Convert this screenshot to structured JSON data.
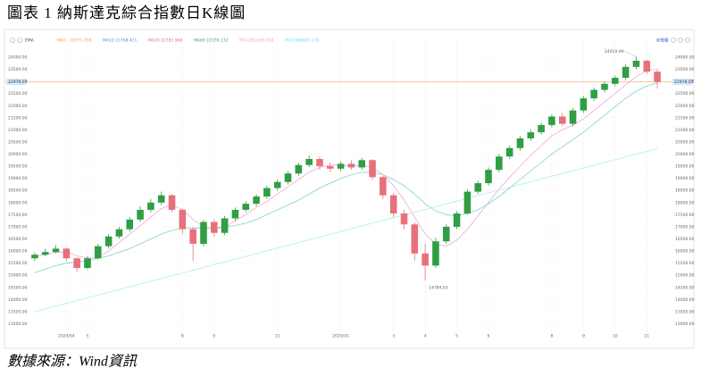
{
  "title": "圖表 1 納斯達克綜合指數日K線圖",
  "source": "數據來源：Wind資訊",
  "chart_data": {
    "type": "candlestick",
    "legend_title": "EMA",
    "adjust_label": "前復權",
    "legend": [
      {
        "name": "MA5",
        "value": "22971.498",
        "color": "#f0a040"
      },
      {
        "name": "MA10",
        "value": "22768.421",
        "color": "#4a90d9"
      },
      {
        "name": "MA20",
        "value": "22761.968",
        "color": "#e05fb5"
      },
      {
        "name": "MA60",
        "value": "22378.132",
        "color": "#3aa35a"
      },
      {
        "name": "MA120",
        "value": "21628.318",
        "color": "#f0a0d0"
      },
      {
        "name": "MA250",
        "value": "19893.178",
        "color": "#6fd8f0"
      }
    ],
    "categories": [
      null,
      null,
      null,
      "2024/04",
      null,
      "5",
      null,
      null,
      null,
      null,
      null,
      null,
      null,
      null,
      "8",
      null,
      null,
      "9",
      null,
      null,
      null,
      null,
      null,
      "11",
      null,
      null,
      null,
      null,
      null,
      "2025/01",
      null,
      null,
      null,
      null,
      "3",
      null,
      null,
      "4",
      null,
      null,
      "5",
      null,
      null,
      "6",
      null,
      null,
      null,
      null,
      null,
      "8",
      null,
      null,
      "9",
      null,
      null,
      "10",
      null,
      null,
      "11",
      null
    ],
    "open": [
      15700,
      15850,
      15960,
      16100,
      15700,
      15300,
      15700,
      16200,
      16600,
      16900,
      17300,
      17700,
      18000,
      18300,
      17700,
      16900,
      16300,
      17200,
      16750,
      17350,
      17700,
      17950,
      18250,
      18600,
      18850,
      19200,
      19550,
      19800,
      19500,
      19400,
      19600,
      19450,
      19750,
      19050,
      18300,
      17550,
      17100,
      15900,
      15400,
      16400,
      17000,
      17550,
      18450,
      18800,
      19350,
      19900,
      20250,
      20650,
      20900,
      21200,
      21550,
      21250,
      21800,
      22300,
      22650,
      22900,
      23150,
      23600,
      23850,
      23400
    ],
    "high": [
      15950,
      16100,
      16250,
      16150,
      15750,
      15800,
      16300,
      16700,
      17000,
      17400,
      17850,
      18150,
      18450,
      18350,
      17750,
      17000,
      17300,
      17300,
      17450,
      17800,
      18050,
      18350,
      18700,
      18950,
      19300,
      19650,
      19950,
      19900,
      19650,
      19700,
      19750,
      19850,
      19800,
      19100,
      18400,
      17700,
      17200,
      16300,
      16550,
      17100,
      17650,
      18550,
      18900,
      19450,
      20000,
      20350,
      20750,
      21000,
      21300,
      21650,
      21700,
      21900,
      22400,
      22750,
      23000,
      23250,
      23700,
      24019.99,
      23900,
      23500
    ],
    "low": [
      15600,
      15780,
      15900,
      15600,
      15150,
      15250,
      15650,
      16100,
      16500,
      16800,
      17200,
      17600,
      17900,
      17600,
      16700,
      15600,
      16200,
      16600,
      16650,
      17250,
      17600,
      17850,
      18150,
      18500,
      18750,
      19100,
      19450,
      19350,
      19250,
      19300,
      19350,
      19350,
      18950,
      18150,
      17400,
      16900,
      15600,
      14784.03,
      15300,
      16300,
      16900,
      17500,
      18350,
      18700,
      19250,
      19800,
      20150,
      20550,
      20800,
      21100,
      21150,
      21150,
      21700,
      22200,
      22550,
      22800,
      23050,
      23500,
      23300,
      22700
    ],
    "close": [
      15850,
      15960,
      16100,
      15700,
      15300,
      15700,
      16200,
      16600,
      16900,
      17300,
      17700,
      18000,
      18300,
      17700,
      16900,
      16300,
      17200,
      16750,
      17350,
      17700,
      17950,
      18250,
      18600,
      18850,
      19200,
      19550,
      19800,
      19500,
      19400,
      19600,
      19450,
      19750,
      19050,
      18300,
      17550,
      17100,
      15900,
      15400,
      16400,
      17000,
      17550,
      18450,
      18800,
      19350,
      19900,
      20250,
      20650,
      20900,
      21200,
      21550,
      21250,
      21800,
      22300,
      22650,
      22900,
      23150,
      23600,
      23850,
      23400,
      22978.05
    ],
    "up_color": "#2f9e44",
    "down_color": "#e8707a",
    "ma_lines": [
      {
        "color": "#f2a7d6",
        "values": [
          15800,
          15850,
          15950,
          15950,
          15800,
          15700,
          15750,
          16000,
          16350,
          16700,
          17050,
          17400,
          17750,
          17900,
          17700,
          17300,
          17000,
          16900,
          17000,
          17250,
          17500,
          17800,
          18050,
          18350,
          18650,
          18950,
          19250,
          19450,
          19550,
          19550,
          19500,
          19550,
          19450,
          19150,
          18700,
          18100,
          17400,
          16700,
          16300,
          16200,
          16450,
          16900,
          17450,
          18000,
          18550,
          19050,
          19500,
          19950,
          20350,
          20750,
          21000,
          21200,
          21450,
          21800,
          22150,
          22500,
          22850,
          23200,
          23450,
          23500
        ]
      },
      {
        "color": "#7fd3c4",
        "values": [
          15100,
          15250,
          15400,
          15500,
          15550,
          15600,
          15700,
          15800,
          15950,
          16100,
          16300,
          16500,
          16700,
          16850,
          16950,
          16950,
          16950,
          16950,
          17000,
          17050,
          17150,
          17300,
          17500,
          17700,
          17900,
          18100,
          18350,
          18600,
          18800,
          19000,
          19150,
          19250,
          19250,
          19150,
          18950,
          18700,
          18350,
          17950,
          17650,
          17500,
          17450,
          17550,
          17700,
          17950,
          18250,
          18600,
          18950,
          19300,
          19650,
          20000,
          20300,
          20600,
          20900,
          21250,
          21600,
          21950,
          22300,
          22600,
          22800,
          22950
        ]
      },
      {
        "color": "#a6eef5",
        "values": [
          13500,
          13614,
          13728,
          13842,
          13956,
          14070,
          14184,
          14298,
          14412,
          14526,
          14640,
          14754,
          14868,
          14982,
          15096,
          15210,
          15324,
          15438,
          15552,
          15666,
          15780,
          15894,
          16008,
          16122,
          16236,
          16350,
          16464,
          16578,
          16692,
          16806,
          16920,
          17034,
          17148,
          17262,
          17376,
          17490,
          17604,
          17718,
          17832,
          17946,
          18060,
          18174,
          18288,
          18402,
          18516,
          18630,
          18744,
          18858,
          18972,
          19086,
          19200,
          19314,
          19428,
          19542,
          19656,
          19770,
          19884,
          19998,
          20112,
          20226
        ]
      }
    ],
    "hline": {
      "value": 22978.05,
      "label": "22978.05",
      "color": "#f5b08a"
    },
    "annotations": [
      "24019.99",
      "14784.03"
    ],
    "ylim": [
      12650,
      24700
    ],
    "yticks": [
      {
        "value": 13000,
        "label": "13000.00"
      },
      {
        "value": 13500,
        "label": "13500.00"
      },
      {
        "value": 14000,
        "label": "14000.00"
      },
      {
        "value": 14500,
        "label": "14500.00"
      },
      {
        "value": 15000,
        "label": "15000.00"
      },
      {
        "value": 15500,
        "label": "15500.00"
      },
      {
        "value": 16000,
        "label": "16000.00"
      },
      {
        "value": 16500,
        "label": "16500.00"
      },
      {
        "value": 17000,
        "label": "17000.00"
      },
      {
        "value": 17500,
        "label": "17500.00"
      },
      {
        "value": 18000,
        "label": "18000.00"
      },
      {
        "value": 18500,
        "label": "18500.00"
      },
      {
        "value": 19000,
        "label": "19000.00"
      },
      {
        "value": 19500,
        "label": "19500.00"
      },
      {
        "value": 20000,
        "label": "20000.00"
      },
      {
        "value": 20500,
        "label": "20500.00"
      },
      {
        "value": 21000,
        "label": "21000.00"
      },
      {
        "value": 21500,
        "label": "21500.00"
      },
      {
        "value": 22000,
        "label": "22000.00"
      },
      {
        "value": 22500,
        "label": "22500.00"
      },
      {
        "value": 23000,
        "label": "23000.00"
      },
      {
        "value": 23500,
        "label": "23500.00"
      },
      {
        "value": 24000,
        "label": "24000.00"
      }
    ]
  }
}
